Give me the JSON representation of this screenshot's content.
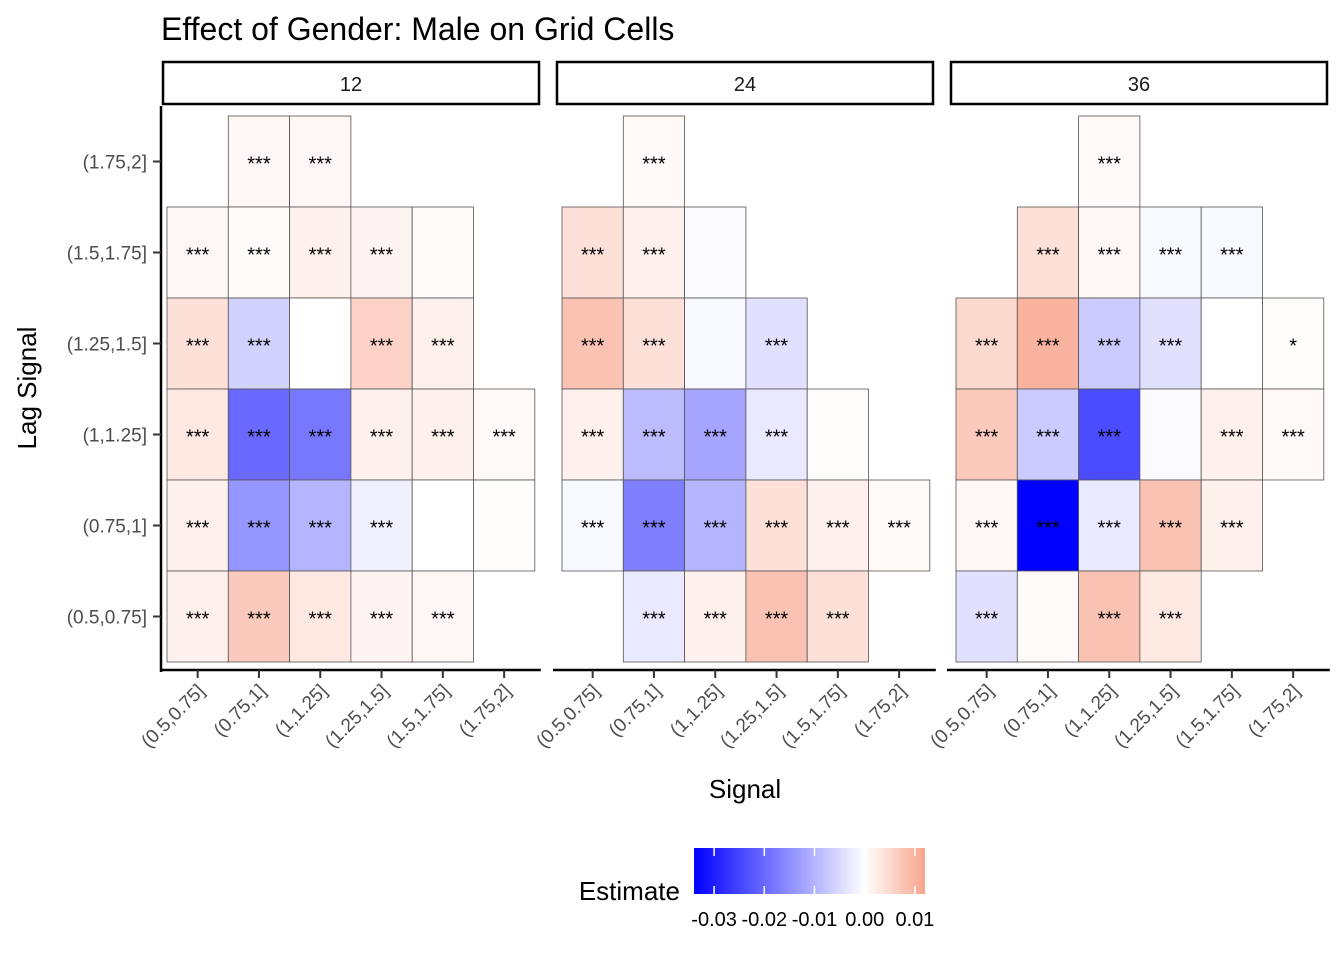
{
  "chart_data": {
    "type": "heatmap",
    "title": "Effect of Gender: Male on Grid Cells",
    "xlabel": "Signal",
    "ylabel": "Lag Signal",
    "x_categories": [
      "(0.5,0.75]",
      "(0.75,1]",
      "(1,1.25]",
      "(1.25,1.5]",
      "(1.5,1.75]",
      "(1.75,2]"
    ],
    "y_categories": [
      "(0.5,0.75]",
      "(0.75,1]",
      "(1,1.25]",
      "(1.25,1.5]",
      "(1.5,1.75]",
      "(1.75,2]"
    ],
    "legend": {
      "title": "Estimate",
      "position": "bottom",
      "range": [
        -0.034,
        0.012
      ],
      "low_color": "#0000FF",
      "mid_color": "#FFFFFF",
      "high_color": "#F8A48C",
      "ticks": [
        -0.03,
        -0.02,
        -0.01,
        0.0,
        0.01
      ],
      "tick_labels": [
        "-0.03",
        "-0.02",
        "-0.01",
        "0.00",
        "0.01"
      ]
    },
    "facets": [
      {
        "label": "12",
        "cells": [
          {
            "x": "(0.75,1]",
            "y": "(1.75,2]",
            "value": 0.001,
            "sig": "***"
          },
          {
            "x": "(1,1.25]",
            "y": "(1.75,2]",
            "value": 0.001,
            "sig": "***"
          },
          {
            "x": "(0.5,0.75]",
            "y": "(1.5,1.75]",
            "value": 0.001,
            "sig": "***"
          },
          {
            "x": "(0.75,1]",
            "y": "(1.5,1.75]",
            "value": 0.0005,
            "sig": "***"
          },
          {
            "x": "(1,1.25]",
            "y": "(1.5,1.75]",
            "value": 0.002,
            "sig": "***"
          },
          {
            "x": "(1.25,1.5]",
            "y": "(1.5,1.75]",
            "value": 0.0015,
            "sig": "***"
          },
          {
            "x": "(1.5,1.75]",
            "y": "(1.5,1.75]",
            "value": 0.0005,
            "sig": ""
          },
          {
            "x": "(0.5,0.75]",
            "y": "(1.25,1.5]",
            "value": 0.004,
            "sig": "***"
          },
          {
            "x": "(0.75,1]",
            "y": "(1.25,1.5]",
            "value": -0.006,
            "sig": "***"
          },
          {
            "x": "(1,1.25]",
            "y": "(1.25,1.5]",
            "value": 0.0,
            "sig": ""
          },
          {
            "x": "(1.25,1.5]",
            "y": "(1.25,1.5]",
            "value": 0.006,
            "sig": "***"
          },
          {
            "x": "(1.5,1.75]",
            "y": "(1.25,1.5]",
            "value": 0.002,
            "sig": "***"
          },
          {
            "x": "(0.5,0.75]",
            "y": "(1,1.25]",
            "value": 0.003,
            "sig": "***"
          },
          {
            "x": "(0.75,1]",
            "y": "(1,1.25]",
            "value": -0.02,
            "sig": "***"
          },
          {
            "x": "(1,1.25]",
            "y": "(1,1.25]",
            "value": -0.018,
            "sig": "***"
          },
          {
            "x": "(1.25,1.5]",
            "y": "(1,1.25]",
            "value": 0.002,
            "sig": "***"
          },
          {
            "x": "(1.5,1.75]",
            "y": "(1,1.25]",
            "value": 0.002,
            "sig": "***"
          },
          {
            "x": "(1.75,2]",
            "y": "(1,1.25]",
            "value": 0.0008,
            "sig": "***"
          },
          {
            "x": "(0.5,0.75]",
            "y": "(0.75,1]",
            "value": 0.002,
            "sig": "***"
          },
          {
            "x": "(0.75,1]",
            "y": "(0.75,1]",
            "value": -0.014,
            "sig": "***"
          },
          {
            "x": "(1,1.25]",
            "y": "(0.75,1]",
            "value": -0.01,
            "sig": "***"
          },
          {
            "x": "(1.25,1.5]",
            "y": "(0.75,1]",
            "value": -0.002,
            "sig": "***"
          },
          {
            "x": "(1.5,1.75]",
            "y": "(0.75,1]",
            "value": 0.0,
            "sig": ""
          },
          {
            "x": "(1.75,2]",
            "y": "(0.75,1]",
            "value": 0.0003,
            "sig": ""
          },
          {
            "x": "(0.5,0.75]",
            "y": "(0.5,0.75]",
            "value": 0.002,
            "sig": "***"
          },
          {
            "x": "(0.75,1]",
            "y": "(0.5,0.75]",
            "value": 0.007,
            "sig": "***"
          },
          {
            "x": "(1,1.25]",
            "y": "(0.5,0.75]",
            "value": 0.003,
            "sig": "***"
          },
          {
            "x": "(1.25,1.5]",
            "y": "(0.5,0.75]",
            "value": 0.0015,
            "sig": "***"
          },
          {
            "x": "(1.5,1.75]",
            "y": "(0.5,0.75]",
            "value": 0.001,
            "sig": "***"
          }
        ]
      },
      {
        "label": "24",
        "cells": [
          {
            "x": "(0.75,1]",
            "y": "(1.75,2]",
            "value": 0.0008,
            "sig": "***"
          },
          {
            "x": "(0.5,0.75]",
            "y": "(1.5,1.75]",
            "value": 0.004,
            "sig": "***"
          },
          {
            "x": "(0.75,1]",
            "y": "(1.5,1.75]",
            "value": 0.002,
            "sig": "***"
          },
          {
            "x": "(1,1.25]",
            "y": "(1.5,1.75]",
            "value": -0.0005,
            "sig": ""
          },
          {
            "x": "(0.5,0.75]",
            "y": "(1.25,1.5]",
            "value": 0.008,
            "sig": "***"
          },
          {
            "x": "(0.75,1]",
            "y": "(1.25,1.5]",
            "value": 0.004,
            "sig": "***"
          },
          {
            "x": "(1,1.25]",
            "y": "(1.25,1.5]",
            "value": -0.001,
            "sig": ""
          },
          {
            "x": "(1.25,1.5]",
            "y": "(1.25,1.5]",
            "value": -0.004,
            "sig": "***"
          },
          {
            "x": "(0.5,0.75]",
            "y": "(1,1.25]",
            "value": 0.002,
            "sig": "***"
          },
          {
            "x": "(0.75,1]",
            "y": "(1,1.25]",
            "value": -0.009,
            "sig": "***"
          },
          {
            "x": "(1,1.25]",
            "y": "(1,1.25]",
            "value": -0.012,
            "sig": "***"
          },
          {
            "x": "(1.25,1.5]",
            "y": "(1,1.25]",
            "value": -0.003,
            "sig": "***"
          },
          {
            "x": "(1.5,1.75]",
            "y": "(1,1.25]",
            "value": 0.0003,
            "sig": ""
          },
          {
            "x": "(0.5,0.75]",
            "y": "(0.75,1]",
            "value": -0.001,
            "sig": "***"
          },
          {
            "x": "(0.75,1]",
            "y": "(0.75,1]",
            "value": -0.017,
            "sig": "***"
          },
          {
            "x": "(1,1.25]",
            "y": "(0.75,1]",
            "value": -0.01,
            "sig": "***"
          },
          {
            "x": "(1.25,1.5]",
            "y": "(0.75,1]",
            "value": 0.004,
            "sig": "***"
          },
          {
            "x": "(1.5,1.75]",
            "y": "(0.75,1]",
            "value": 0.002,
            "sig": "***"
          },
          {
            "x": "(1.75,2]",
            "y": "(0.75,1]",
            "value": 0.0008,
            "sig": "***"
          },
          {
            "x": "(0.75,1]",
            "y": "(0.5,0.75]",
            "value": -0.003,
            "sig": "***"
          },
          {
            "x": "(1,1.25]",
            "y": "(0.5,0.75]",
            "value": 0.002,
            "sig": "***"
          },
          {
            "x": "(1.25,1.5]",
            "y": "(0.5,0.75]",
            "value": 0.008,
            "sig": "***"
          },
          {
            "x": "(1.5,1.75]",
            "y": "(0.5,0.75]",
            "value": 0.004,
            "sig": "***"
          }
        ]
      },
      {
        "label": "36",
        "cells": [
          {
            "x": "(1,1.25]",
            "y": "(1.75,2]",
            "value": 0.0008,
            "sig": "***"
          },
          {
            "x": "(0.75,1]",
            "y": "(1.5,1.75]",
            "value": 0.004,
            "sig": "***"
          },
          {
            "x": "(1,1.25]",
            "y": "(1.5,1.75]",
            "value": 0.001,
            "sig": "***"
          },
          {
            "x": "(1.25,1.5]",
            "y": "(1.5,1.75]",
            "value": -0.001,
            "sig": "***"
          },
          {
            "x": "(1.5,1.75]",
            "y": "(1.5,1.75]",
            "value": -0.001,
            "sig": "***"
          },
          {
            "x": "(0.5,0.75]",
            "y": "(1.25,1.5]",
            "value": 0.005,
            "sig": "***"
          },
          {
            "x": "(0.75,1]",
            "y": "(1.25,1.5]",
            "value": 0.01,
            "sig": "***"
          },
          {
            "x": "(1,1.25]",
            "y": "(1.25,1.5]",
            "value": -0.007,
            "sig": "***"
          },
          {
            "x": "(1.25,1.5]",
            "y": "(1.25,1.5]",
            "value": -0.004,
            "sig": "***"
          },
          {
            "x": "(1.5,1.75]",
            "y": "(1.25,1.5]",
            "value": 0.0,
            "sig": ""
          },
          {
            "x": "(1.75,2]",
            "y": "(1.25,1.5]",
            "value": 0.0003,
            "sig": "*"
          },
          {
            "x": "(0.5,0.75]",
            "y": "(1,1.25]",
            "value": 0.007,
            "sig": "***"
          },
          {
            "x": "(0.75,1]",
            "y": "(1,1.25]",
            "value": -0.007,
            "sig": "***"
          },
          {
            "x": "(1,1.25]",
            "y": "(1,1.25]",
            "value": -0.024,
            "sig": "***"
          },
          {
            "x": "(1.25,1.5]",
            "y": "(1,1.25]",
            "value": -0.0005,
            "sig": ""
          },
          {
            "x": "(1.5,1.75]",
            "y": "(1,1.25]",
            "value": 0.002,
            "sig": "***"
          },
          {
            "x": "(1.75,2]",
            "y": "(1,1.25]",
            "value": 0.0008,
            "sig": "***"
          },
          {
            "x": "(0.5,0.75]",
            "y": "(0.75,1]",
            "value": 0.001,
            "sig": "***"
          },
          {
            "x": "(0.75,1]",
            "y": "(0.75,1]",
            "value": -0.034,
            "sig": "***"
          },
          {
            "x": "(1,1.25]",
            "y": "(0.75,1]",
            "value": -0.003,
            "sig": "***"
          },
          {
            "x": "(1.25,1.5]",
            "y": "(0.75,1]",
            "value": 0.008,
            "sig": "***"
          },
          {
            "x": "(1.5,1.75]",
            "y": "(0.75,1]",
            "value": 0.002,
            "sig": "***"
          },
          {
            "x": "(0.5,0.75]",
            "y": "(0.5,0.75]",
            "value": -0.004,
            "sig": "***"
          },
          {
            "x": "(0.75,1]",
            "y": "(0.5,0.75]",
            "value": 0.0005,
            "sig": ""
          },
          {
            "x": "(1,1.25]",
            "y": "(0.5,0.75]",
            "value": 0.008,
            "sig": "***"
          },
          {
            "x": "(1.25,1.5]",
            "y": "(0.5,0.75]",
            "value": 0.003,
            "sig": "***"
          }
        ]
      }
    ]
  }
}
